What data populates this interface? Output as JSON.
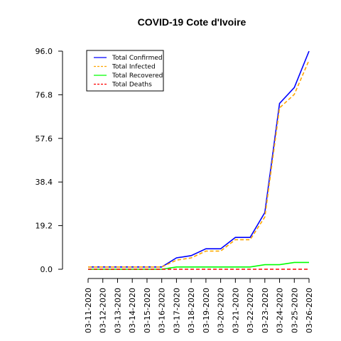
{
  "chart_data": {
    "type": "line",
    "title": "COVID-19 Cote d'Ivoire",
    "xlabel": "",
    "ylabel": "",
    "ylim": [
      0,
      96
    ],
    "yticks": [
      0.0,
      19.2,
      38.4,
      57.6,
      76.8,
      96.0
    ],
    "ytick_labels": [
      "0.0",
      "19.2",
      "38.4",
      "57.6",
      "76.8",
      "96.0"
    ],
    "categories": [
      "03-11-2020",
      "03-12-2020",
      "03-13-2020",
      "03-14-2020",
      "03-15-2020",
      "03-16-2020",
      "03-17-2020",
      "03-18-2020",
      "03-19-2020",
      "03-20-2020",
      "03-21-2020",
      "03-22-2020",
      "03-23-2020",
      "03-24-2020",
      "03-25-2020",
      "03-26-2020"
    ],
    "grid": false,
    "legend_position": "top-left",
    "series": [
      {
        "name": "Total Confirmed",
        "color": "#0000ff",
        "dash": "solid",
        "values": [
          1,
          1,
          1,
          1,
          1,
          1,
          5,
          6,
          9,
          9,
          14,
          14,
          25,
          73,
          80,
          96
        ]
      },
      {
        "name": "Total Infected",
        "color": "#ffa500",
        "dash": "dashed",
        "values": [
          1,
          1,
          1,
          1,
          1,
          1,
          4,
          5,
          8,
          8,
          13,
          13,
          23,
          71,
          77,
          92
        ]
      },
      {
        "name": "Total Recovered",
        "color": "#00ff00",
        "dash": "solid",
        "values": [
          0,
          0,
          0,
          0,
          0,
          0,
          1,
          1,
          1,
          1,
          1,
          1,
          2,
          2,
          3,
          3
        ]
      },
      {
        "name": "Total Deaths",
        "color": "#ff0000",
        "dash": "dashed",
        "values": [
          0,
          0,
          0,
          0,
          0,
          0,
          0,
          0,
          0,
          0,
          0,
          0,
          0,
          0,
          0,
          0
        ]
      }
    ]
  }
}
